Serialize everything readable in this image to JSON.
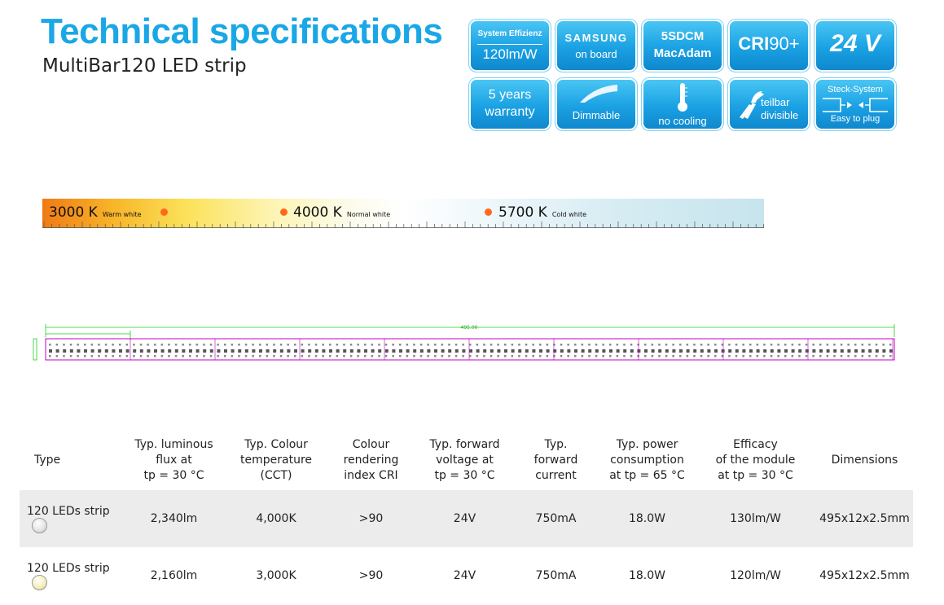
{
  "header": {
    "title": "Technical specifications",
    "subtitle": "MultiBar120 LED strip"
  },
  "badges": {
    "efficiency_label": "System Effizienz",
    "efficiency_value": "120lm/W",
    "samsung_brand": "SAMSUNG",
    "samsung_sub": "on board",
    "macadam_line1": "5SDCM",
    "macadam_line2": "MacAdam",
    "cri_prefix": "CRI",
    "cri_value": "90+",
    "voltage": "24 V",
    "warranty_line1": "5 years",
    "warranty_line2": "warranty",
    "dimmable": "Dimmable",
    "no_cooling": "no cooling",
    "divisible_line1": "teilbar",
    "divisible_line2": "divisible",
    "plug_top": "Steck-System",
    "plug_bottom": "Easy to plug",
    "icons": [
      "dimmable-sweep-icon",
      "thermometer-icon",
      "pliers-icon",
      "plug-connector-icon"
    ]
  },
  "cct_scale": {
    "marks": [
      {
        "value": "3000 K",
        "note": "Warm white"
      },
      {
        "value": "4000 K",
        "note": "Normal white"
      },
      {
        "value": "5700 K",
        "note": "Cold white"
      }
    ],
    "dot_color": "#ff6a1a"
  },
  "strip_drawing": {
    "total_length": "495.00",
    "segment_length": "—"
  },
  "table": {
    "headers": [
      "Type",
      "Typ. luminous flux at tp = 30 °C",
      "Typ. Colour temperature (CCT)",
      "Colour rendering index CRI",
      "Typ. forward voltage at tp = 30 °C",
      "Typ. forward current",
      "Typ. power consumption at tp = 65 °C",
      "Efficacy of the module at tp = 30 °C",
      "Dimensions"
    ],
    "rows": [
      {
        "type": "120 LEDs strip",
        "flux": "2,340lm",
        "cct": "4,000K",
        "cri": ">90",
        "voltage": "24V",
        "current": "750mA",
        "power": "18.0W",
        "efficacy": "130lm/W",
        "dimensions": "495x12x2.5mm",
        "bulb_color": "#e2e2e2"
      },
      {
        "type": "120 LEDs strip",
        "flux": "2,160lm",
        "cct": "3,000K",
        "cri": ">90",
        "voltage": "24V",
        "current": "750mA",
        "power": "18.0W",
        "efficacy": "120lm/W",
        "dimensions": "495x12x2.5mm",
        "bulb_color": "#f3eeb6"
      }
    ]
  },
  "colors": {
    "accent": "#1aa7e6",
    "badge_blue": "#1aa1e3",
    "strip_outline": "#c000c0",
    "dimension_line": "#00cc00"
  }
}
